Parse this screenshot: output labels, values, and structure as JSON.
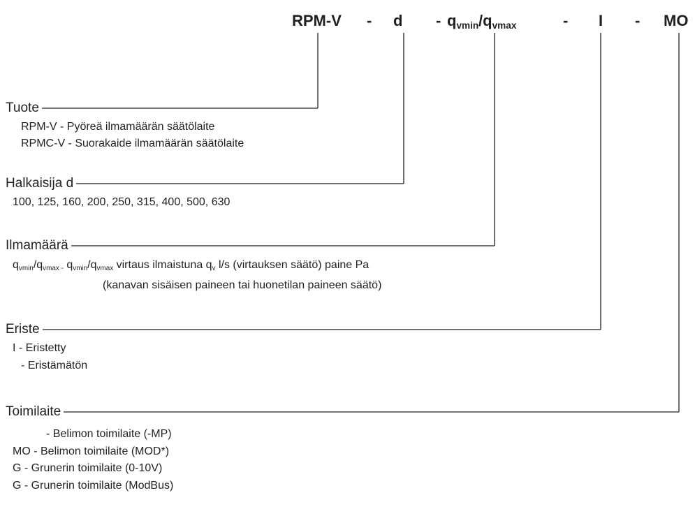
{
  "code": {
    "items": [
      {
        "text": "RPM-V"
      },
      {
        "text": "-"
      },
      {
        "text": "d"
      },
      {
        "text": "-"
      },
      {
        "text": "q",
        "sub": "vmin"
      },
      {
        "text": "/q",
        "sub": "vmax"
      },
      {
        "text": "-"
      },
      {
        "text": "I"
      },
      {
        "text": "-"
      },
      {
        "text": "MO"
      }
    ]
  },
  "sections": [
    {
      "label": "Tuote",
      "lines": [
        [
          {
            "text": "RPM-V - Pyöreä ilmamäärän säätölaite"
          }
        ],
        [
          {
            "text": "RPMC-V - Suorakaide ilmamäärän säätölaite"
          }
        ]
      ]
    },
    {
      "label": "Halkaisija d",
      "lines": [
        [
          {
            "text": "100, 125, 160, 200, 250, 315, 400, 500, 630"
          }
        ]
      ]
    },
    {
      "label": "Ilmamäärä",
      "lines": [
        [
          {
            "text": "q",
            "sub": "vmin"
          },
          {
            "text": "/q",
            "sub": "vmax -"
          },
          {
            "text": " q",
            "sub": "vmin"
          },
          {
            "text": "/q",
            "sub": "vmax"
          },
          {
            "text": " virtaus ilmaistuna q",
            "sub": "v"
          },
          {
            "text": " l/s (virtauksen säätö) paine Pa"
          }
        ],
        [
          {
            "text": "(kanavan sisäisen paineen tai huonetilan paineen säätö)"
          }
        ]
      ]
    },
    {
      "label": "Eriste",
      "lines": [
        [
          {
            "text": "I - Eristetty"
          }
        ],
        [
          {
            "text": "- Eristämätön"
          }
        ]
      ]
    },
    {
      "label": "Toimilaite",
      "lines": [
        [
          {
            "text": "- Belimon toimilaite (-MP)"
          }
        ],
        [
          {
            "text": "MO - Belimon toimilaite (MOD*)"
          }
        ],
        [
          {
            "text": "G - Grunerin toimilaite (0-10V)"
          }
        ],
        [
          {
            "text": "G - Grunerin toimilaite (ModBus)"
          }
        ]
      ]
    }
  ]
}
